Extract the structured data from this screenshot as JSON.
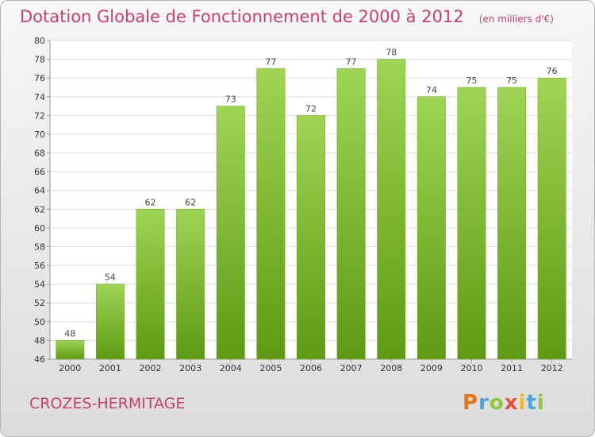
{
  "chart_data": {
    "type": "bar",
    "title": "Dotation Globale de Fonctionnement de 2000 à 2012",
    "unit_note": "(en milliers d'€)",
    "categories": [
      "2000",
      "2001",
      "2002",
      "2003",
      "2004",
      "2005",
      "2006",
      "2007",
      "2008",
      "2009",
      "2010",
      "2011",
      "2012"
    ],
    "values": [
      48,
      54,
      62,
      62,
      73,
      77,
      72,
      77,
      78,
      74,
      75,
      75,
      76
    ],
    "ylim": [
      46,
      80
    ],
    "yticks": [
      46,
      48,
      50,
      52,
      54,
      56,
      58,
      60,
      62,
      64,
      66,
      68,
      70,
      72,
      74,
      76,
      78,
      80
    ],
    "grid": true,
    "bar_color": "#7fc232"
  },
  "footer": {
    "commune": "CROZES-HERMITAGE",
    "logo": [
      "P",
      "r",
      "o",
      "x",
      "i",
      "t",
      "i"
    ],
    "logo_colors": [
      "#e8731a",
      "#4aa3df",
      "#8dc63f",
      "#e84c3d",
      "#f2b81f",
      "#4aa3df",
      "#8dc63f"
    ]
  }
}
